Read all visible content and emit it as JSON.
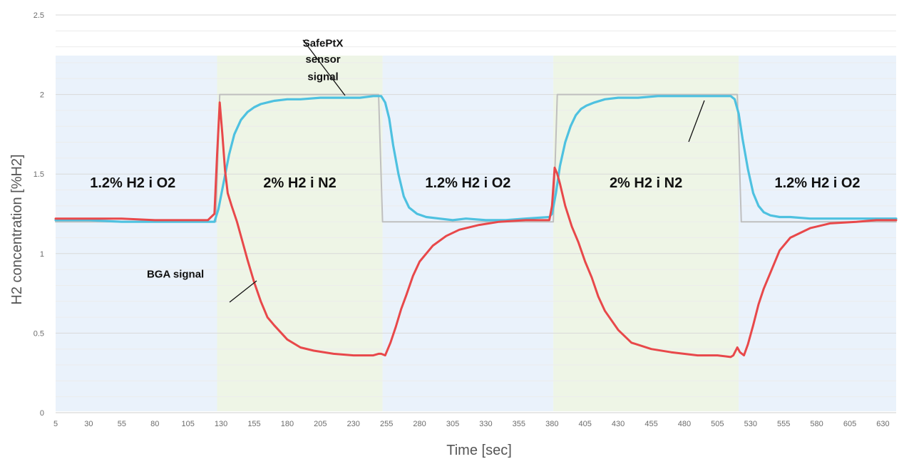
{
  "chart_data": {
    "type": "line",
    "title": "",
    "xlabel": "Time [sec]",
    "ylabel": "H2 concentration [%H2]",
    "xlim": [
      5,
      640
    ],
    "ylim": [
      0,
      2.5
    ],
    "x_ticks": [
      5,
      30,
      55,
      80,
      105,
      130,
      155,
      180,
      205,
      230,
      255,
      280,
      305,
      330,
      355,
      380,
      405,
      430,
      455,
      480,
      505,
      530,
      555,
      580,
      605,
      630
    ],
    "y_ticks": [
      0,
      0.5,
      1,
      1.5,
      2,
      2.5
    ],
    "y_tick_labels": [
      "0",
      "0.5",
      "1",
      "1.5",
      "2",
      "2.5"
    ],
    "grid": true,
    "bands": [
      {
        "label": "1.2% H2 i O2",
        "x_start": 5,
        "x_end": 127,
        "color": "#eaf2fb"
      },
      {
        "label": "2% H2 i N2",
        "x_start": 127,
        "x_end": 252,
        "color": "#eef5e6"
      },
      {
        "label": "1.2% H2 i O2",
        "x_start": 252,
        "x_end": 381,
        "color": "#eaf2fb"
      },
      {
        "label": "2% H2 i N2",
        "x_start": 381,
        "x_end": 521,
        "color": "#eef5e6"
      },
      {
        "label": "1.2% H2 i O2",
        "x_start": 521,
        "x_end": 640,
        "color": "#eaf2fb"
      }
    ],
    "annotations": [
      {
        "text": "SafePtX",
        "x": 207,
        "y": 2.3
      },
      {
        "text": "sensor",
        "x": 207,
        "y": 2.2
      },
      {
        "text": "signal",
        "x": 207,
        "y": 2.09
      },
      {
        "text": "BGA signal",
        "x": 130,
        "y": 0.85
      }
    ],
    "series": [
      {
        "color": "#bfbfbf",
        "x": [
          5,
          126,
          129,
          249,
          252,
          381,
          384,
          520,
          523,
          640
        ],
        "y": [
          1.2,
          1.2,
          2.0,
          2.0,
          1.2,
          1.2,
          2.0,
          2.0,
          1.2,
          1.2
        ]
      },
      {
        "color": "#4ec1e0",
        "x": [
          5,
          30,
          55,
          80,
          105,
          120,
          125,
          128,
          132,
          136,
          140,
          145,
          150,
          155,
          160,
          170,
          180,
          190,
          205,
          220,
          235,
          245,
          248,
          251,
          254,
          257,
          260,
          264,
          268,
          272,
          278,
          285,
          295,
          305,
          315,
          330,
          345,
          360,
          378,
          380,
          383,
          386,
          390,
          394,
          398,
          402,
          406,
          412,
          420,
          430,
          445,
          460,
          480,
          500,
          515,
          518,
          521,
          524,
          528,
          532,
          536,
          540,
          545,
          552,
          560,
          575,
          590,
          605,
          620,
          630,
          640
        ],
        "y": [
          1.21,
          1.21,
          1.2,
          1.2,
          1.2,
          1.2,
          1.2,
          1.28,
          1.45,
          1.62,
          1.75,
          1.84,
          1.89,
          1.92,
          1.94,
          1.96,
          1.97,
          1.97,
          1.98,
          1.98,
          1.98,
          1.99,
          1.99,
          1.99,
          1.95,
          1.85,
          1.68,
          1.5,
          1.36,
          1.29,
          1.25,
          1.23,
          1.22,
          1.21,
          1.22,
          1.21,
          1.21,
          1.22,
          1.23,
          1.25,
          1.38,
          1.55,
          1.7,
          1.8,
          1.87,
          1.91,
          1.93,
          1.95,
          1.97,
          1.98,
          1.98,
          1.99,
          1.99,
          1.99,
          1.99,
          1.97,
          1.88,
          1.72,
          1.53,
          1.38,
          1.3,
          1.26,
          1.24,
          1.23,
          1.23,
          1.22,
          1.22,
          1.22,
          1.22,
          1.22,
          1.22
        ]
      },
      {
        "color": "#e8484a",
        "x": [
          5,
          30,
          55,
          80,
          105,
          120,
          125,
          127,
          129,
          131,
          133,
          135,
          138,
          142,
          146,
          150,
          155,
          160,
          165,
          170,
          180,
          190,
          200,
          215,
          230,
          245,
          249,
          251,
          254,
          258,
          262,
          266,
          270,
          275,
          280,
          290,
          300,
          310,
          325,
          340,
          360,
          378,
          380,
          382,
          384,
          386,
          390,
          395,
          400,
          405,
          410,
          415,
          420,
          430,
          440,
          455,
          470,
          490,
          505,
          515,
          517,
          520,
          522,
          525,
          528,
          532,
          536,
          540,
          546,
          552,
          560,
          575,
          590,
          610,
          625,
          640
        ],
        "y": [
          1.22,
          1.22,
          1.22,
          1.21,
          1.21,
          1.21,
          1.25,
          1.62,
          1.95,
          1.75,
          1.52,
          1.38,
          1.3,
          1.2,
          1.08,
          0.96,
          0.82,
          0.7,
          0.6,
          0.55,
          0.46,
          0.41,
          0.39,
          0.37,
          0.36,
          0.36,
          0.37,
          0.37,
          0.36,
          0.44,
          0.54,
          0.65,
          0.74,
          0.86,
          0.95,
          1.05,
          1.11,
          1.15,
          1.18,
          1.2,
          1.21,
          1.21,
          1.3,
          1.54,
          1.5,
          1.44,
          1.3,
          1.17,
          1.07,
          0.95,
          0.85,
          0.73,
          0.64,
          0.52,
          0.44,
          0.4,
          0.38,
          0.36,
          0.36,
          0.35,
          0.36,
          0.41,
          0.38,
          0.36,
          0.43,
          0.55,
          0.68,
          0.78,
          0.9,
          1.02,
          1.1,
          1.16,
          1.19,
          1.2,
          1.21,
          1.21
        ]
      }
    ]
  }
}
